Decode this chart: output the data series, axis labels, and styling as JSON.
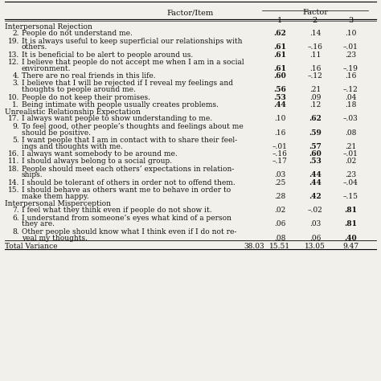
{
  "title_col": "Factor/Item",
  "header_factor": "Factor",
  "col_headers": [
    "1",
    "2",
    "3"
  ],
  "sections": [
    {
      "name": "Interpersonal Rejection",
      "rows": [
        {
          "num": "2.",
          "text": "People do not understand me.",
          "f1": ".62",
          "f2": ".14",
          "f3": ".10",
          "bold": [
            1
          ]
        },
        {
          "num": "19.",
          "text": "It is always useful to keep superficial our relationships with\nothers.",
          "f1": ".61",
          "f2": "–.16",
          "f3": "–.01",
          "bold": [
            1
          ]
        },
        {
          "num": "13.",
          "text": "It is beneficial to be alert to people around us.",
          "f1": ".61",
          "f2": ".11",
          "f3": ".23",
          "bold": [
            1
          ]
        },
        {
          "num": "12.",
          "text": "I believe that people do not accept me when I am in a social\nenvironment.",
          "f1": ".61",
          "f2": ".16",
          "f3": "–.19",
          "bold": [
            1
          ]
        },
        {
          "num": "4.",
          "text": "There are no real friends in this life.",
          "f1": ".60",
          "f2": "–.12",
          "f3": ".16",
          "bold": [
            1
          ]
        },
        {
          "num": "3.",
          "text": "I believe that I will be rejected if I reveal my feelings and\nthoughts to people around me.",
          "f1": ".56",
          "f2": ".21",
          "f3": "–.12",
          "bold": [
            1
          ]
        },
        {
          "num": "10.",
          "text": "People do not keep their promises.",
          "f1": ".53",
          "f2": ".09",
          "f3": ".04",
          "bold": [
            1
          ]
        },
        {
          "num": "1.",
          "text": "Being intimate with people usually creates problems.",
          "f1": ".44",
          "f2": ".12",
          "f3": ".18",
          "bold": [
            1
          ]
        }
      ]
    },
    {
      "name": "Unrealistic Relationship Expectation",
      "rows": [
        {
          "num": "17.",
          "text": "I always want people to show understanding to me.",
          "f1": ".10",
          "f2": ".62",
          "f3": "–.03",
          "bold": [
            2
          ]
        },
        {
          "num": "9.",
          "text": "To feel good, other people’s thoughts and feelings about me\nshould be positive.",
          "f1": ".16",
          "f2": ".59",
          "f3": ".08",
          "bold": [
            2
          ]
        },
        {
          "num": "5.",
          "text": "I want people that I am in contact with to share their feel-\nings and thoughts with me.",
          "f1": "–.01",
          "f2": ".57",
          "f3": ".21",
          "bold": [
            2
          ]
        },
        {
          "num": "16.",
          "text": "I always want somebody to be around me.",
          "f1": "–.16",
          "f2": ".60",
          "f3": "–.01",
          "bold": [
            2
          ]
        },
        {
          "num": "11.",
          "text": "I should always belong to a social group.",
          "f1": "–.17",
          "f2": ".53",
          "f3": ".02",
          "bold": [
            2
          ]
        },
        {
          "num": "18.",
          "text": "People should meet each others’ expectations in relation-\nships.",
          "f1": ".03",
          "f2": ".44",
          "f3": ".23",
          "bold": [
            2
          ]
        },
        {
          "num": "14.",
          "text": "I should be tolerant of others in order not to offend them.",
          "f1": ".25",
          "f2": ".44",
          "f3": "–.04",
          "bold": [
            2
          ]
        },
        {
          "num": "15.",
          "text": "I should behave as others want me to behave in order to\nmake them happy.",
          "f1": ".28",
          "f2": ".42",
          "f3": "–.15",
          "bold": [
            2
          ]
        }
      ]
    },
    {
      "name": "Interpersonal Misperception",
      "rows": [
        {
          "num": "7.",
          "text": "I feel what they think even if people do not show it.",
          "f1": ".02",
          "f2": "–.02",
          "f3": ".81",
          "bold": [
            3
          ]
        },
        {
          "num": "6.",
          "text": "I understand from someone’s eyes what kind of a person\nthey are.",
          "f1": ".06",
          "f2": ".03",
          "f3": ".81",
          "bold": [
            3
          ]
        },
        {
          "num": "8.",
          "text": "Other people should know what I think even if I do not re-\nveal my thoughts.",
          "f1": ".08",
          "f2": ".06",
          "f3": ".40",
          "bold": [
            3
          ]
        }
      ]
    }
  ],
  "footer": {
    "label": "Total Variance",
    "f0": "38.03",
    "f1": "15.51",
    "f2": "13.05",
    "f3": "9.47"
  },
  "bg_color": "#f2f0eb",
  "text_color": "#111111",
  "font_size": 6.5,
  "header_font_size": 7.0
}
